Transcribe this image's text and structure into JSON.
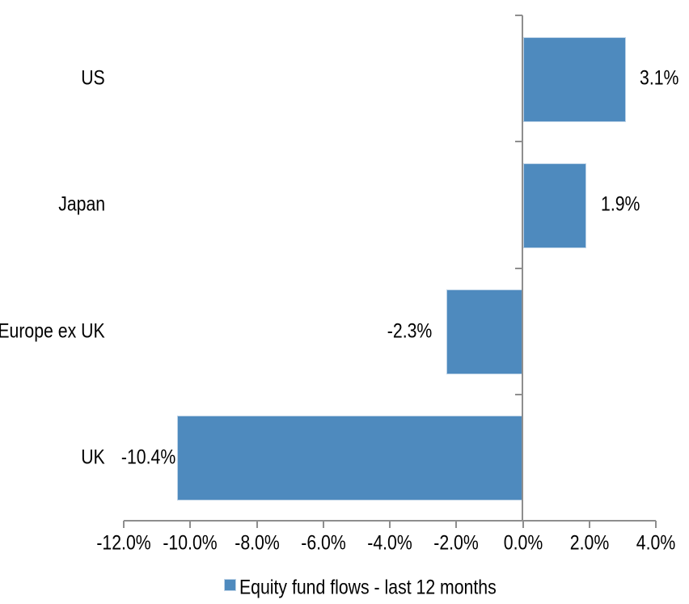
{
  "chart_data": {
    "type": "bar",
    "orientation": "horizontal",
    "categories": [
      "US",
      "Japan",
      "Europe ex UK",
      "UK"
    ],
    "values": [
      3.1,
      1.9,
      -2.3,
      -10.4
    ],
    "data_labels": [
      "3.1%",
      "1.9%",
      "-2.3%",
      "-10.4%"
    ],
    "series": [
      {
        "name": "Equity fund flows - last 12 months",
        "values": [
          3.1,
          1.9,
          -2.3,
          -10.4
        ]
      }
    ],
    "xlim": [
      -12,
      4
    ],
    "x_ticks": [
      -12,
      -10,
      -8,
      -6,
      -4,
      -2,
      0,
      2,
      4
    ],
    "x_tick_labels": [
      "-12.0%",
      "-10.0%",
      "-8.0%",
      "-6.0%",
      "-4.0%",
      "-2.0%",
      "0.0%",
      "2.0%",
      "4.0%"
    ],
    "grid": false,
    "legend": {
      "label": "Equity fund flows - last 12 months",
      "position": "bottom"
    },
    "colors": {
      "bar": "#4E8ABE",
      "bar_border": "#BDD3E7",
      "axis": "#8E8E8E",
      "text": "#000000",
      "background": "#FFFFFF"
    }
  }
}
